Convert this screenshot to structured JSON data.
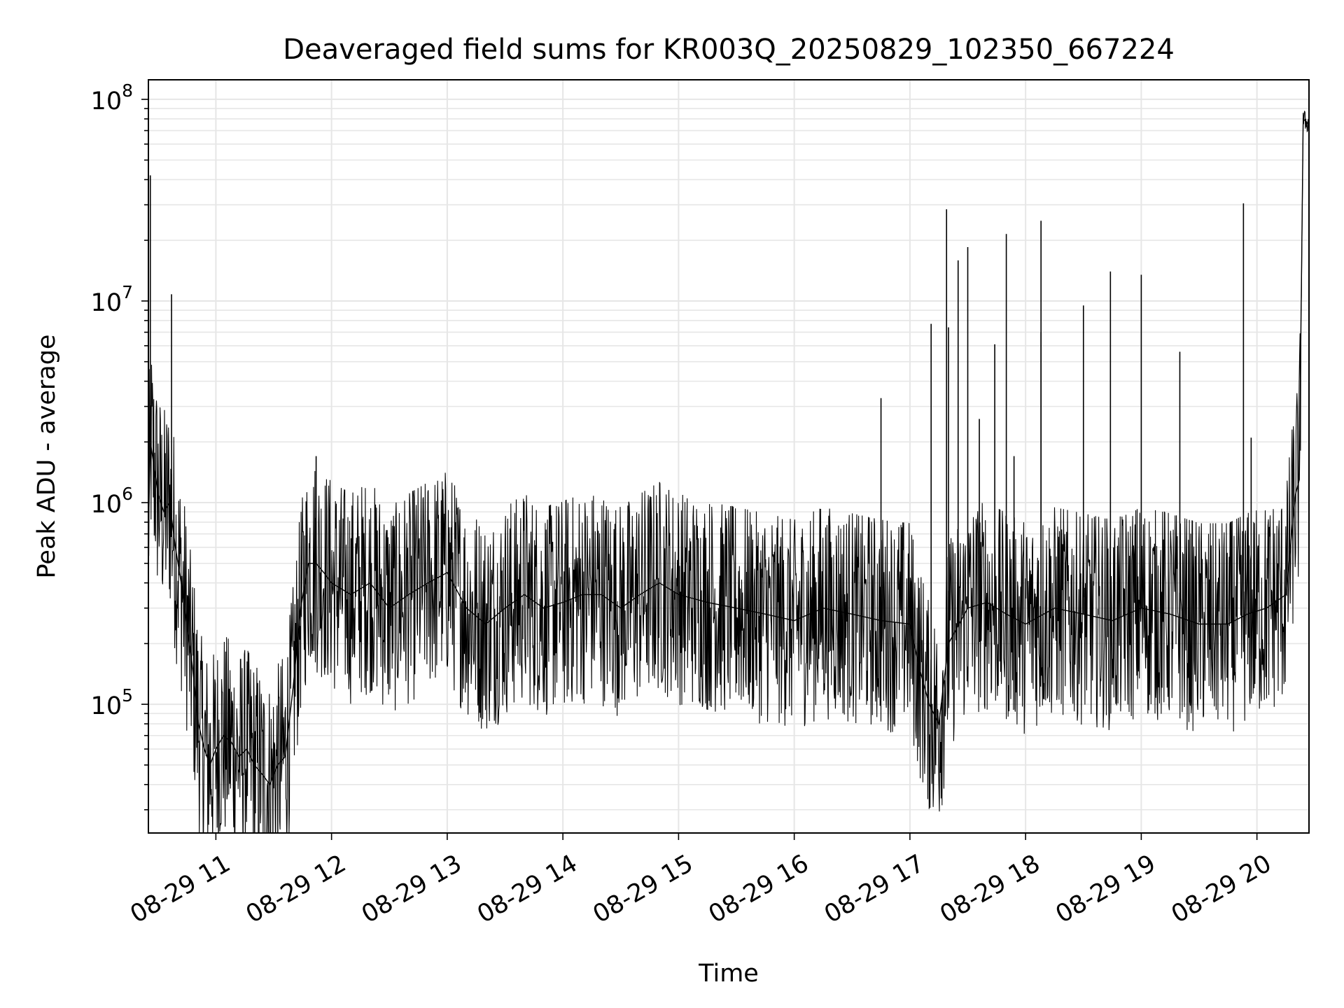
{
  "chart_data": {
    "type": "line",
    "title": "Deaveraged field sums for KR003Q_20250829_102350_667224",
    "xlabel": "Time",
    "ylabel": "Peak ADU - average",
    "x_axis": {
      "type": "time",
      "range": [
        "2025-08-29 10:25",
        "2025-08-29 20:27"
      ],
      "ticks": [
        {
          "value": "2025-08-29 11:00",
          "label": "08-29 11"
        },
        {
          "value": "2025-08-29 12:00",
          "label": "08-29 12"
        },
        {
          "value": "2025-08-29 13:00",
          "label": "08-29 13"
        },
        {
          "value": "2025-08-29 14:00",
          "label": "08-29 14"
        },
        {
          "value": "2025-08-29 15:00",
          "label": "08-29 15"
        },
        {
          "value": "2025-08-29 16:00",
          "label": "08-29 16"
        },
        {
          "value": "2025-08-29 17:00",
          "label": "08-29 17"
        },
        {
          "value": "2025-08-29 18:00",
          "label": "08-29 18"
        },
        {
          "value": "2025-08-29 19:00",
          "label": "08-29 19"
        },
        {
          "value": "2025-08-29 20:00",
          "label": "08-29 20"
        }
      ]
    },
    "y_axis": {
      "scale": "log",
      "range": [
        23000,
        125000000
      ],
      "ticks": [
        {
          "value": 100000,
          "base": "10",
          "exp": "5"
        },
        {
          "value": 1000000,
          "base": "10",
          "exp": "6"
        },
        {
          "value": 10000000,
          "base": "10",
          "exp": "7"
        },
        {
          "value": 100000000,
          "base": "10",
          "exp": "8"
        }
      ]
    },
    "grid": true,
    "line_color": "#000000",
    "grid_color": "#e6e6e6",
    "series": [
      {
        "x": [
          "2025-08-29 10:25",
          "2025-08-29 10:26",
          "2025-08-29 10:28",
          "2025-08-29 10:30",
          "2025-08-29 10:33",
          "2025-08-29 10:36",
          "2025-08-29 10:39",
          "2025-08-29 10:42",
          "2025-08-29 10:45",
          "2025-08-29 10:48",
          "2025-08-29 10:51",
          "2025-08-29 10:54",
          "2025-08-29 10:57",
          "2025-08-29 11:00",
          "2025-08-29 11:04",
          "2025-08-29 11:08",
          "2025-08-29 11:12",
          "2025-08-29 11:16",
          "2025-08-29 11:20",
          "2025-08-29 11:24",
          "2025-08-29 11:28",
          "2025-08-29 11:32",
          "2025-08-29 11:36",
          "2025-08-29 11:40",
          "2025-08-29 11:44",
          "2025-08-29 11:48",
          "2025-08-29 11:52",
          "2025-08-29 11:56",
          "2025-08-29 12:00",
          "2025-08-29 12:10",
          "2025-08-29 12:20",
          "2025-08-29 12:30",
          "2025-08-29 12:40",
          "2025-08-29 12:50",
          "2025-08-29 13:00",
          "2025-08-29 13:10",
          "2025-08-29 13:20",
          "2025-08-29 13:30",
          "2025-08-29 13:40",
          "2025-08-29 13:50",
          "2025-08-29 14:00",
          "2025-08-29 14:10",
          "2025-08-29 14:20",
          "2025-08-29 14:30",
          "2025-08-29 14:40",
          "2025-08-29 14:50",
          "2025-08-29 15:00",
          "2025-08-29 15:15",
          "2025-08-29 15:30",
          "2025-08-29 15:45",
          "2025-08-29 16:00",
          "2025-08-29 16:15",
          "2025-08-29 16:30",
          "2025-08-29 16:45",
          "2025-08-29 17:00",
          "2025-08-29 17:05",
          "2025-08-29 17:10",
          "2025-08-29 17:15",
          "2025-08-29 17:20",
          "2025-08-29 17:30",
          "2025-08-29 17:40",
          "2025-08-29 17:50",
          "2025-08-29 18:00",
          "2025-08-29 18:15",
          "2025-08-29 18:30",
          "2025-08-29 18:45",
          "2025-08-29 19:00",
          "2025-08-29 19:15",
          "2025-08-29 19:30",
          "2025-08-29 19:45",
          "2025-08-29 19:55",
          "2025-08-29 20:05",
          "2025-08-29 20:15",
          "2025-08-29 20:20",
          "2025-08-29 20:22",
          "2025-08-29 20:24",
          "2025-08-29 20:27"
        ],
        "y": [
          700000,
          2000000,
          1500000,
          1100000,
          900000,
          1000000,
          600000,
          400000,
          250000,
          150000,
          80000,
          60000,
          50000,
          60000,
          70000,
          65000,
          55000,
          60000,
          50000,
          45000,
          40000,
          50000,
          55000,
          120000,
          300000,
          500000,
          500000,
          450000,
          400000,
          350000,
          400000,
          300000,
          350000,
          400000,
          450000,
          300000,
          250000,
          300000,
          350000,
          300000,
          320000,
          350000,
          350000,
          300000,
          350000,
          400000,
          350000,
          320000,
          300000,
          280000,
          260000,
          300000,
          280000,
          260000,
          250000,
          150000,
          100000,
          80000,
          200000,
          300000,
          320000,
          280000,
          250000,
          300000,
          280000,
          260000,
          300000,
          280000,
          250000,
          250000,
          280000,
          300000,
          350000,
          1100000,
          1300000,
          80000000,
          75000000
        ],
        "spikes": [
          {
            "x": "2025-08-29 10:26",
            "y": 42000000
          },
          {
            "x": "2025-08-29 10:37",
            "y": 10800000
          },
          {
            "x": "2025-08-29 11:52",
            "y": 1700000
          },
          {
            "x": "2025-08-29 16:45",
            "y": 3300000
          },
          {
            "x": "2025-08-29 17:11",
            "y": 7700000
          },
          {
            "x": "2025-08-29 17:19",
            "y": 28500000
          },
          {
            "x": "2025-08-29 17:20",
            "y": 7400000
          },
          {
            "x": "2025-08-29 17:25",
            "y": 15900000
          },
          {
            "x": "2025-08-29 17:30",
            "y": 18500000
          },
          {
            "x": "2025-08-29 17:36",
            "y": 2600000
          },
          {
            "x": "2025-08-29 17:44",
            "y": 6100000
          },
          {
            "x": "2025-08-29 17:50",
            "y": 21500000
          },
          {
            "x": "2025-08-29 17:54",
            "y": 1700000
          },
          {
            "x": "2025-08-29 18:08",
            "y": 25000000
          },
          {
            "x": "2025-08-29 18:08",
            "y": 7000000
          },
          {
            "x": "2025-08-29 18:30",
            "y": 9500000
          },
          {
            "x": "2025-08-29 18:44",
            "y": 14000000
          },
          {
            "x": "2025-08-29 19:00",
            "y": 13500000
          },
          {
            "x": "2025-08-29 19:20",
            "y": 5600000
          },
          {
            "x": "2025-08-29 19:53",
            "y": 30500000
          },
          {
            "x": "2025-08-29 19:57",
            "y": 2100000
          }
        ]
      }
    ]
  }
}
